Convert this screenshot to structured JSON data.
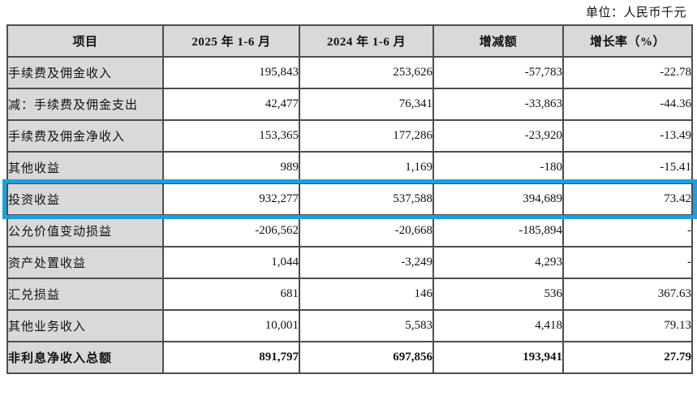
{
  "unit_label": "单位：人民币千元",
  "colors": {
    "highlight_border": "#1a9fe0",
    "header_background": "#d9d9d9",
    "grid_border": "#4d4d4d"
  },
  "table": {
    "headers": [
      "项目",
      "2025 年 1-6 月",
      "2024 年 1-6 月",
      "增减额",
      "增长率（%）"
    ],
    "rows": [
      {
        "item": "手续费及佣金收入",
        "v2025": "195,843",
        "v2024": "253,626",
        "change": "-57,783",
        "rate": "-22.78",
        "highlight": false,
        "bold": false
      },
      {
        "item": "减：手续费及佣金支出",
        "v2025": "42,477",
        "v2024": "76,341",
        "change": "-33,863",
        "rate": "-44.36",
        "highlight": false,
        "bold": false
      },
      {
        "item": "手续费及佣金净收入",
        "v2025": "153,365",
        "v2024": "177,286",
        "change": "-23,920",
        "rate": "-13.49",
        "highlight": false,
        "bold": false
      },
      {
        "item": "其他收益",
        "v2025": "989",
        "v2024": "1,169",
        "change": "-180",
        "rate": "-15.41",
        "highlight": false,
        "bold": false
      },
      {
        "item": "投资收益",
        "v2025": "932,277",
        "v2024": "537,588",
        "change": "394,689",
        "rate": "73.42",
        "highlight": true,
        "bold": false
      },
      {
        "item": "公允价值变动损益",
        "v2025": "-206,562",
        "v2024": "-20,668",
        "change": "-185,894",
        "rate": "-",
        "highlight": false,
        "bold": false
      },
      {
        "item": "资产处置收益",
        "v2025": "1,044",
        "v2024": "-3,249",
        "change": "4,293",
        "rate": "-",
        "highlight": false,
        "bold": false
      },
      {
        "item": "汇兑损益",
        "v2025": "681",
        "v2024": "146",
        "change": "536",
        "rate": "367.63",
        "highlight": false,
        "bold": false
      },
      {
        "item": "其他业务收入",
        "v2025": "10,001",
        "v2024": "5,583",
        "change": "4,418",
        "rate": "79.13",
        "highlight": false,
        "bold": false
      },
      {
        "item": "非利息净收入总额",
        "v2025": "891,797",
        "v2024": "697,856",
        "change": "193,941",
        "rate": "27.79",
        "highlight": false,
        "bold": true
      }
    ]
  }
}
